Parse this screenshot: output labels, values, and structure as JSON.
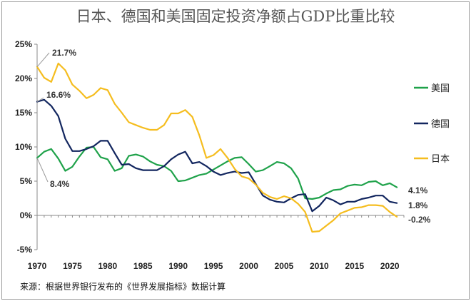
{
  "chart_data": {
    "type": "line",
    "title": "日本、德国和美国固定投资净额占GDP比重比较",
    "source": "来源：根据世界银行发布的《世界发展指标》数据计算",
    "xlabel": "",
    "ylabel": "",
    "xlim": [
      1970,
      2022
    ],
    "ylim": [
      -5,
      25
    ],
    "x_ticks": [
      1970,
      1975,
      1980,
      1985,
      1990,
      1995,
      2000,
      2005,
      2010,
      2015,
      2020
    ],
    "y_ticks": [
      25,
      20,
      15,
      10,
      5,
      0,
      -5
    ],
    "y_tick_labels": [
      "25%",
      "20%",
      "15%",
      "10%",
      "5%",
      "0%",
      "-5%"
    ],
    "x": [
      1970,
      1971,
      1972,
      1973,
      1974,
      1975,
      1976,
      1977,
      1978,
      1979,
      1980,
      1981,
      1982,
      1983,
      1984,
      1985,
      1986,
      1987,
      1988,
      1989,
      1990,
      1991,
      1992,
      1993,
      1994,
      1995,
      1996,
      1997,
      1998,
      1999,
      2000,
      2001,
      2002,
      2003,
      2004,
      2005,
      2006,
      2007,
      2008,
      2009,
      2010,
      2011,
      2012,
      2013,
      2014,
      2015,
      2016,
      2017,
      2018,
      2019,
      2020,
      2021
    ],
    "series": [
      {
        "name": "美国",
        "color": "#1fa24a",
        "values": [
          8.4,
          9.3,
          9.7,
          8.3,
          6.5,
          7.1,
          8.6,
          9.9,
          10.0,
          8.5,
          8.2,
          6.5,
          6.9,
          8.7,
          8.9,
          8.6,
          7.9,
          7.4,
          7.2,
          6.5,
          5.0,
          5.1,
          5.5,
          5.9,
          6.1,
          6.7,
          7.3,
          7.9,
          8.4,
          8.5,
          7.5,
          6.4,
          6.6,
          7.2,
          7.8,
          7.6,
          6.9,
          5.4,
          2.5,
          2.4,
          2.6,
          3.2,
          3.7,
          3.8,
          4.3,
          4.5,
          4.4,
          4.9,
          5.0,
          4.4,
          4.7,
          4.1
        ]
      },
      {
        "name": "德国",
        "color": "#12265f",
        "values": [
          16.6,
          16.9,
          16.0,
          14.5,
          11.2,
          9.4,
          9.4,
          9.7,
          10.1,
          10.9,
          10.9,
          9.1,
          7.4,
          7.5,
          6.9,
          6.6,
          6.6,
          6.6,
          7.2,
          8.2,
          8.9,
          9.3,
          7.6,
          7.8,
          7.2,
          6.4,
          5.9,
          6.2,
          6.4,
          6.2,
          6.3,
          4.6,
          2.9,
          2.3,
          2.0,
          1.9,
          2.5,
          3.0,
          3.1,
          0.6,
          1.4,
          2.6,
          2.2,
          1.6,
          2.0,
          2.0,
          2.4,
          2.6,
          2.9,
          2.9,
          2.0,
          1.8
        ]
      },
      {
        "name": "日本",
        "color": "#f5bd1f",
        "values": [
          21.7,
          20.1,
          19.5,
          22.2,
          21.2,
          19.1,
          18.2,
          17.1,
          17.6,
          18.6,
          18.3,
          16.3,
          15.0,
          13.6,
          13.2,
          12.8,
          12.5,
          12.5,
          13.2,
          14.9,
          14.9,
          15.4,
          14.4,
          11.7,
          8.4,
          8.8,
          9.7,
          8.4,
          6.8,
          5.7,
          5.4,
          4.5,
          3.3,
          2.7,
          2.4,
          2.8,
          2.5,
          1.7,
          0.5,
          -2.4,
          -2.3,
          -1.5,
          -0.7,
          0.3,
          0.7,
          1.1,
          1.2,
          1.5,
          1.5,
          1.4,
          0.5,
          -0.2
        ]
      }
    ],
    "annotations": [
      {
        "series": "日本",
        "x": 1970,
        "text": "21.7%"
      },
      {
        "series": "德国",
        "x": 1970,
        "text": "16.6%"
      },
      {
        "series": "美国",
        "x": 1970,
        "text": "8.4%"
      },
      {
        "series": "美国",
        "x": 2021,
        "text": "4.1%"
      },
      {
        "series": "德国",
        "x": 2021,
        "text": "1.8%"
      },
      {
        "series": "日本",
        "x": 2021,
        "text": "-0.2%"
      }
    ],
    "legend": {
      "position": "right",
      "entries": [
        "美国",
        "德国",
        "日本"
      ]
    },
    "grid": false
  }
}
